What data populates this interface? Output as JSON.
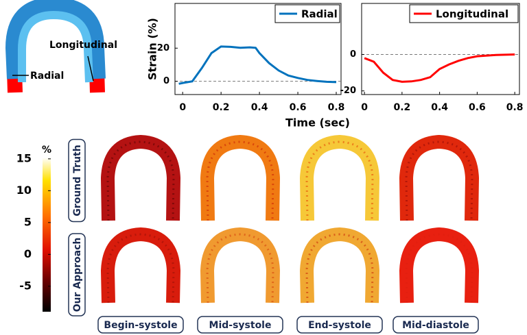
{
  "chart_data": [
    {
      "type": "line",
      "ylabel": "Strain (%)",
      "xlabel": "Time (sec)",
      "legend": "upper right",
      "dashed_zero": true,
      "x": [
        -0.02,
        0,
        0.05,
        0.1,
        0.15,
        0.2,
        0.25,
        0.3,
        0.35,
        0.38,
        0.4,
        0.45,
        0.5,
        0.55,
        0.6,
        0.65,
        0.7,
        0.75,
        0.8
      ],
      "series": [
        {
          "name": "Radial",
          "color": "#0072bd",
          "values": [
            -1.5,
            -1,
            0,
            8,
            17,
            21,
            20.8,
            20.2,
            20.5,
            20.2,
            17,
            11,
            6.5,
            3.5,
            2,
            0.8,
            0.2,
            -0.3,
            -0.5
          ]
        }
      ],
      "xlim": [
        -0.04,
        0.825
      ],
      "xticks": [
        0,
        0.2,
        0.4,
        0.6,
        0.8
      ],
      "ylim": [
        -8,
        47
      ],
      "yticks": [
        0,
        20
      ]
    },
    {
      "type": "line",
      "legend": "upper right",
      "dashed_zero": true,
      "x": [
        0,
        0.05,
        0.1,
        0.15,
        0.2,
        0.25,
        0.3,
        0.35,
        0.4,
        0.45,
        0.5,
        0.55,
        0.6,
        0.7,
        0.8
      ],
      "series": [
        {
          "name": "Longitudinal",
          "color": "#ff0000",
          "values": [
            -2,
            -4,
            -10,
            -14,
            -15,
            -14.8,
            -14,
            -12.5,
            -8,
            -5.5,
            -3.5,
            -2,
            -1,
            -0.3,
            0
          ]
        }
      ],
      "xlim": [
        -0.015,
        0.825
      ],
      "xticks": [
        0,
        0.2,
        0.4,
        0.6,
        0.8
      ],
      "ylim": [
        -22,
        28
      ],
      "yticks": [
        0,
        -20
      ]
    }
  ],
  "diagram": {
    "labels": [
      "Longitudinal",
      "Radial"
    ]
  },
  "colorbar": {
    "title": "%",
    "lim": [
      -9,
      15.2
    ],
    "ticks": [
      15,
      10,
      5,
      0,
      -5
    ]
  },
  "rows": [
    "Ground Truth",
    "Our Approach"
  ],
  "columns": [
    "Begin-systole",
    "Mid-systole",
    "End-systole",
    "Mid-diastole"
  ]
}
